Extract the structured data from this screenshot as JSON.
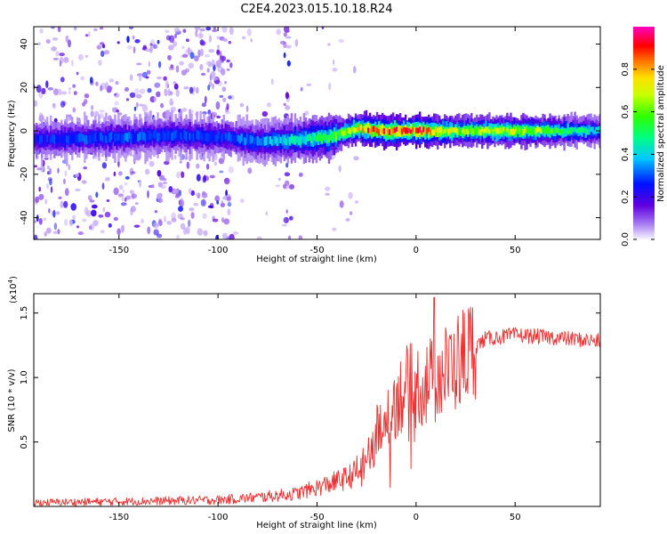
{
  "title": "C2E4.2023.015.10.18.R24",
  "chart_data": [
    {
      "type": "heatmap",
      "xlabel": "Height of straight line (km)",
      "ylabel": "Frequency (Hz)",
      "xlim": [
        -193,
        93
      ],
      "ylim": [
        -50,
        48
      ],
      "xticks": [
        -150,
        -100,
        -50,
        0,
        50
      ],
      "yticks": [
        -40,
        -20,
        0,
        20,
        40
      ],
      "colorbar": {
        "label": "Normalized spectral amplitude",
        "range": [
          0,
          1
        ],
        "ticks": [
          0.0,
          0.2,
          0.4,
          0.6,
          0.8
        ],
        "colormap": [
          "#f6f6ff",
          "#7a00e6",
          "#0000ff",
          "#00e5ff",
          "#00ff3c",
          "#a0ff00",
          "#ffff00",
          "#ff8000",
          "#ff0000",
          "#ff00c0"
        ]
      },
      "ridge": {
        "center_hz": [
          [
            -193,
            -4
          ],
          [
            -150,
            -3
          ],
          [
            -120,
            -2
          ],
          [
            -95,
            -3
          ],
          [
            -80,
            -5
          ],
          [
            -60,
            -4
          ],
          [
            -45,
            -3
          ],
          [
            -30,
            1
          ],
          [
            -20,
            0
          ],
          [
            0,
            0
          ],
          [
            50,
            0
          ],
          [
            93,
            0
          ]
        ],
        "peak_amplitude": [
          [
            -193,
            0.25
          ],
          [
            -150,
            0.3
          ],
          [
            -100,
            0.28
          ],
          [
            -80,
            0.33
          ],
          [
            -55,
            0.45
          ],
          [
            -40,
            0.58
          ],
          [
            -25,
            0.8
          ],
          [
            0,
            0.9
          ],
          [
            20,
            0.65
          ],
          [
            50,
            0.68
          ],
          [
            93,
            0.4
          ]
        ]
      },
      "noise_bands_km": [
        [
          -193,
          -100
        ],
        [
          -110,
          -93
        ],
        [
          -67,
          -62
        ]
      ]
    },
    {
      "type": "line",
      "xlabel": "Height of straight line (km)",
      "ylabel": "SNR (10 * v/v)",
      "y_multiplier": "(x10",
      "y_multiplier_exp": "4",
      "y_multiplier_close": ")",
      "xlim": [
        -193,
        93
      ],
      "ylim": [
        0,
        1.65
      ],
      "xticks": [
        -150,
        -100,
        -50,
        0,
        50
      ],
      "yticks": [
        0.5,
        1.0,
        1.5
      ],
      "ytick_labels": [
        "0.5",
        "1.0",
        "1.5"
      ],
      "series_color": "#ee3030",
      "trend": [
        [
          -193,
          0.03
        ],
        [
          -140,
          0.04
        ],
        [
          -100,
          0.05
        ],
        [
          -80,
          0.07
        ],
        [
          -60,
          0.1
        ],
        [
          -45,
          0.17
        ],
        [
          -35,
          0.22
        ],
        [
          -26,
          0.3
        ],
        [
          -20,
          0.55
        ],
        [
          -12,
          0.8
        ],
        [
          -5,
          0.92
        ],
        [
          5,
          0.95
        ],
        [
          15,
          1.05
        ],
        [
          25,
          1.18
        ],
        [
          35,
          1.3
        ],
        [
          50,
          1.33
        ],
        [
          70,
          1.31
        ],
        [
          93,
          1.28
        ]
      ],
      "spike": [
        9,
        1.62
      ]
    }
  ]
}
